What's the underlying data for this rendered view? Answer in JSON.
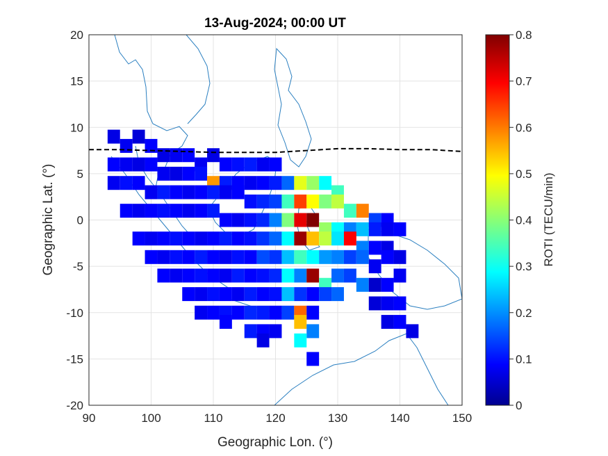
{
  "chart_data": {
    "type": "heatmap",
    "title": "13-Aug-2024; 00:00 UT",
    "xlabel": "Geographic Lon. (°)",
    "ylabel": "Geographic Lat. (°)",
    "xlim": [
      90,
      150
    ],
    "ylim": [
      -20,
      20
    ],
    "xticks": [
      "90",
      "100",
      "110",
      "120",
      "130",
      "140",
      "150"
    ],
    "yticks": [
      "20",
      "15",
      "10",
      "5",
      "0",
      "-5",
      "-10",
      "-15",
      "-20"
    ],
    "grid": true,
    "colorbar": {
      "label": "ROTI (TECU/min)",
      "range": [
        0,
        0.8
      ],
      "ticks": [
        "0.8",
        "0.7",
        "0.6",
        "0.5",
        "0.4",
        "0.3",
        "0.2",
        "0.1",
        "0"
      ],
      "colormap": "jet"
    },
    "magnetic_equator": [
      [
        90,
        7.6
      ],
      [
        95,
        7.6
      ],
      [
        100,
        7.5
      ],
      [
        105,
        7.4
      ],
      [
        110,
        7.3
      ],
      [
        115,
        7.3
      ],
      [
        120,
        7.3
      ],
      [
        125,
        7.5
      ],
      [
        130,
        7.7
      ],
      [
        135,
        7.7
      ],
      [
        140,
        7.6
      ],
      [
        145,
        7.6
      ],
      [
        150,
        7.4
      ]
    ],
    "roti_cells": [
      [
        94,
        9,
        0.08
      ],
      [
        96,
        8,
        0.09
      ],
      [
        98,
        9,
        0.07
      ],
      [
        100,
        8,
        0.1
      ],
      [
        102,
        7,
        0.08
      ],
      [
        104,
        7,
        0.09
      ],
      [
        106,
        7,
        0.1
      ],
      [
        108,
        6,
        0.09
      ],
      [
        110,
        7,
        0.08
      ],
      [
        112,
        6,
        0.1
      ],
      [
        114,
        6,
        0.11
      ],
      [
        116,
        6,
        0.12
      ],
      [
        118,
        6,
        0.09
      ],
      [
        120,
        6,
        0.1
      ],
      [
        94,
        6,
        0.1
      ],
      [
        96,
        6,
        0.09
      ],
      [
        98,
        6,
        0.08
      ],
      [
        100,
        6,
        0.1
      ],
      [
        102,
        5,
        0.09
      ],
      [
        104,
        5,
        0.08
      ],
      [
        106,
        5,
        0.1
      ],
      [
        108,
        5,
        0.11
      ],
      [
        110,
        4,
        0.58
      ],
      [
        112,
        4,
        0.12
      ],
      [
        114,
        4,
        0.1
      ],
      [
        116,
        4,
        0.09
      ],
      [
        118,
        4,
        0.1
      ],
      [
        120,
        4,
        0.12
      ],
      [
        122,
        4,
        0.18
      ],
      [
        124,
        4,
        0.48
      ],
      [
        126,
        4,
        0.42
      ],
      [
        128,
        4,
        0.3
      ],
      [
        130,
        3,
        0.35
      ],
      [
        94,
        4,
        0.09
      ],
      [
        96,
        4,
        0.11
      ],
      [
        98,
        4,
        0.1
      ],
      [
        100,
        3,
        0.09
      ],
      [
        102,
        3,
        0.12
      ],
      [
        104,
        3,
        0.1
      ],
      [
        106,
        3,
        0.09
      ],
      [
        108,
        3,
        0.1
      ],
      [
        110,
        3,
        0.12
      ],
      [
        112,
        3,
        0.09
      ],
      [
        114,
        3,
        0.1
      ],
      [
        116,
        2,
        0.11
      ],
      [
        118,
        2,
        0.13
      ],
      [
        120,
        2,
        0.15
      ],
      [
        122,
        2,
        0.35
      ],
      [
        124,
        2,
        0.65
      ],
      [
        126,
        2,
        0.5
      ],
      [
        128,
        2,
        0.4
      ],
      [
        130,
        2,
        0.45
      ],
      [
        132,
        1,
        0.35
      ],
      [
        134,
        1,
        0.6
      ],
      [
        136,
        0,
        0.15
      ],
      [
        138,
        0,
        0.1
      ],
      [
        96,
        1,
        0.1
      ],
      [
        98,
        1,
        0.09
      ],
      [
        100,
        1,
        0.1
      ],
      [
        102,
        1,
        0.11
      ],
      [
        104,
        1,
        0.1
      ],
      [
        106,
        1,
        0.09
      ],
      [
        108,
        1,
        0.1
      ],
      [
        110,
        1,
        0.12
      ],
      [
        112,
        0,
        0.1
      ],
      [
        114,
        0,
        0.09
      ],
      [
        116,
        0,
        0.11
      ],
      [
        118,
        0,
        0.13
      ],
      [
        120,
        0,
        0.2
      ],
      [
        122,
        0,
        0.4
      ],
      [
        124,
        0,
        0.72
      ],
      [
        126,
        0,
        0.8
      ],
      [
        128,
        -1,
        0.42
      ],
      [
        130,
        -1,
        0.3
      ],
      [
        132,
        -1,
        0.2
      ],
      [
        134,
        -1,
        0.25
      ],
      [
        136,
        -1,
        0.12
      ],
      [
        138,
        -1,
        0.09
      ],
      [
        140,
        -1,
        0.1
      ],
      [
        98,
        -2,
        0.1
      ],
      [
        100,
        -2,
        0.09
      ],
      [
        102,
        -2,
        0.1
      ],
      [
        104,
        -2,
        0.11
      ],
      [
        106,
        -2,
        0.1
      ],
      [
        108,
        -2,
        0.09
      ],
      [
        110,
        -2,
        0.1
      ],
      [
        112,
        -2,
        0.12
      ],
      [
        114,
        -2,
        0.1
      ],
      [
        116,
        -2,
        0.11
      ],
      [
        118,
        -2,
        0.14
      ],
      [
        120,
        -2,
        0.18
      ],
      [
        122,
        -2,
        0.3
      ],
      [
        124,
        -2,
        0.78
      ],
      [
        126,
        -2,
        0.55
      ],
      [
        128,
        -2,
        0.45
      ],
      [
        130,
        -2,
        0.28
      ],
      [
        132,
        -2,
        0.7
      ],
      [
        134,
        -3,
        0.2
      ],
      [
        136,
        -3,
        0.1
      ],
      [
        138,
        -3,
        0.08
      ],
      [
        100,
        -4,
        0.1
      ],
      [
        102,
        -4,
        0.09
      ],
      [
        104,
        -4,
        0.11
      ],
      [
        106,
        -4,
        0.1
      ],
      [
        108,
        -4,
        0.12
      ],
      [
        110,
        -4,
        0.1
      ],
      [
        112,
        -4,
        0.09
      ],
      [
        114,
        -4,
        0.11
      ],
      [
        116,
        -4,
        0.1
      ],
      [
        118,
        -4,
        0.16
      ],
      [
        120,
        -4,
        0.14
      ],
      [
        122,
        -4,
        0.25
      ],
      [
        124,
        -4,
        0.35
      ],
      [
        126,
        -4,
        0.3
      ],
      [
        128,
        -4,
        0.22
      ],
      [
        130,
        -4,
        0.2
      ],
      [
        132,
        -4,
        0.15
      ],
      [
        134,
        -4,
        0.18
      ],
      [
        136,
        -5,
        0.09
      ],
      [
        138,
        -4,
        0.1
      ],
      [
        140,
        -4,
        0.08
      ],
      [
        102,
        -6,
        0.1
      ],
      [
        104,
        -6,
        0.09
      ],
      [
        106,
        -6,
        0.1
      ],
      [
        108,
        -6,
        0.11
      ],
      [
        110,
        -6,
        0.1
      ],
      [
        112,
        -6,
        0.09
      ],
      [
        114,
        -6,
        0.12
      ],
      [
        116,
        -6,
        0.1
      ],
      [
        118,
        -6,
        0.11
      ],
      [
        120,
        -6,
        0.13
      ],
      [
        122,
        -6,
        0.3
      ],
      [
        124,
        -6,
        0.2
      ],
      [
        126,
        -6,
        0.78
      ],
      [
        128,
        -7,
        0.35
      ],
      [
        130,
        -6,
        0.18
      ],
      [
        132,
        -6,
        0.15
      ],
      [
        134,
        -7,
        0.2
      ],
      [
        136,
        -7,
        0.06
      ],
      [
        138,
        -7,
        0.1
      ],
      [
        140,
        -6,
        0.09
      ],
      [
        106,
        -8,
        0.1
      ],
      [
        108,
        -8,
        0.09
      ],
      [
        110,
        -8,
        0.11
      ],
      [
        112,
        -8,
        0.1
      ],
      [
        114,
        -8,
        0.09
      ],
      [
        116,
        -8,
        0.12
      ],
      [
        118,
        -8,
        0.1
      ],
      [
        120,
        -8,
        0.11
      ],
      [
        122,
        -8,
        0.25
      ],
      [
        124,
        -8,
        0.14
      ],
      [
        126,
        -8,
        0.1
      ],
      [
        128,
        -8,
        0.15
      ],
      [
        130,
        -8,
        0.18
      ],
      [
        136,
        -9,
        0.07
      ],
      [
        138,
        -9,
        0.09
      ],
      [
        140,
        -9,
        0.1
      ],
      [
        108,
        -10,
        0.09
      ],
      [
        110,
        -10,
        0.1
      ],
      [
        112,
        -10,
        0.11
      ],
      [
        114,
        -10,
        0.1
      ],
      [
        116,
        -10,
        0.13
      ],
      [
        118,
        -10,
        0.12
      ],
      [
        120,
        -10,
        0.1
      ],
      [
        122,
        -10,
        0.15
      ],
      [
        124,
        -10,
        0.62
      ],
      [
        126,
        -10,
        0.1
      ],
      [
        138,
        -11,
        0.08
      ],
      [
        140,
        -11,
        0.1
      ],
      [
        142,
        -12,
        0.08
      ],
      [
        112,
        -11,
        0.1
      ],
      [
        116,
        -12,
        0.12
      ],
      [
        118,
        -12,
        0.1
      ],
      [
        120,
        -12,
        0.09
      ],
      [
        124,
        -11,
        0.55
      ],
      [
        126,
        -12,
        0.2
      ],
      [
        118,
        -13,
        0.08
      ],
      [
        124,
        -13,
        0.3
      ],
      [
        126,
        -15,
        0.1
      ]
    ]
  }
}
